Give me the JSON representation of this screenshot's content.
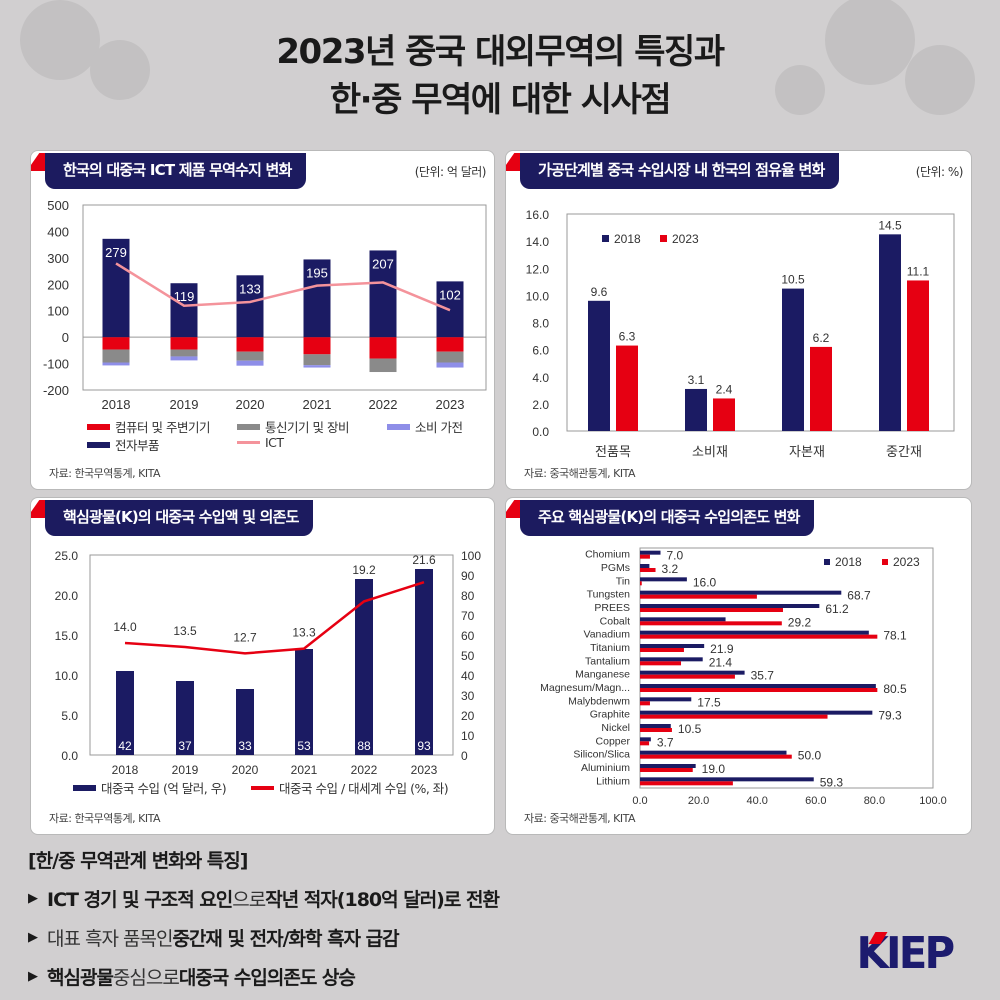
{
  "title": {
    "line1": "2023년 중국 대외무역의 특징과",
    "line2": "한·중 무역에 대한 시사점"
  },
  "colors": {
    "navy": "#1b1b63",
    "red": "#e60012",
    "gray": "#8a8a8a",
    "lavender": "#8e8ee8",
    "pink": "#f4939b"
  },
  "panels": [
    {
      "header": "한국의 대중국 ICT 제품 무역수지 변화",
      "unit": "(단위: 억 달러)",
      "source": "자료: 한국무역통계, KITA"
    },
    {
      "header": "가공단계별 중국 수입시장 내 한국의 점유율 변화",
      "unit": "(단위: %)",
      "source": "자료: 중국해관통계, KITA"
    },
    {
      "header": "핵심광물(K)의 대중국 수입액 및 의존도",
      "source": "자료: 한국무역통계, KITA"
    },
    {
      "header": "주요 핵심광물(K)의 대중국 수입의존도 변화",
      "source": "자료: 중국해관통계, KITA"
    }
  ],
  "chart_data": [
    {
      "type": "bar",
      "stacked": true,
      "title": "한국의 대중국 ICT 제품 무역수지 변화",
      "categories": [
        "2018",
        "2019",
        "2020",
        "2021",
        "2022",
        "2023"
      ],
      "ylim": [
        -200,
        500
      ],
      "yticks": [
        "500",
        "400",
        "300",
        "200",
        "100",
        "0",
        "-100",
        "-200"
      ],
      "series": [
        {
          "name": "컴퓨터 및 주변기기",
          "color": "#e60012",
          "values": [
            -47,
            -47,
            -55,
            -65,
            -81,
            -55
          ]
        },
        {
          "name": "통신기기 및 장비",
          "color": "#8a8a8a",
          "values": [
            -49,
            -26,
            -34,
            -41,
            -51,
            -41
          ]
        },
        {
          "name": "소비 가전",
          "color": "#8e8ee8",
          "values": [
            -11,
            -15,
            -19,
            -9,
            0,
            -19
          ]
        },
        {
          "name": "전자부품",
          "color": "#1b1b63",
          "values": [
            372,
            204,
            234,
            294,
            328,
            211
          ]
        },
        {
          "name": "ICT",
          "type": "line",
          "color": "#f4939b",
          "values": [
            279,
            119,
            133,
            195,
            207,
            102
          ]
        }
      ],
      "data_labels": [
        "279",
        "119",
        "133",
        "195",
        "207",
        "102"
      ]
    },
    {
      "type": "bar",
      "title": "가공단계별 중국 수입시장 내 한국의 점유율 변화",
      "categories": [
        "전품목",
        "소비재",
        "자본재",
        "중간재"
      ],
      "ylim": [
        0,
        16
      ],
      "yticks": [
        "16.0",
        "14.0",
        "12.0",
        "10.0",
        "8.0",
        "6.0",
        "4.0",
        "2.0",
        "0.0"
      ],
      "legend_position": "top-left",
      "series": [
        {
          "name": "2018",
          "color": "#1b1b63",
          "values": [
            9.6,
            3.1,
            10.5,
            14.5
          ],
          "labels": [
            "9.6",
            "3.1",
            "10.5",
            "14.5"
          ]
        },
        {
          "name": "2023",
          "color": "#e60012",
          "values": [
            6.3,
            2.4,
            6.2,
            11.1
          ],
          "labels": [
            "6.3",
            "2.4",
            "6.2",
            "11.1"
          ]
        }
      ]
    },
    {
      "type": "bar",
      "title": "핵심광물(K)의 대중국 수입액 및 의존도",
      "categories": [
        "2018",
        "2019",
        "2020",
        "2021",
        "2022",
        "2023"
      ],
      "ylim_left": [
        0,
        25
      ],
      "ylim_right": [
        0,
        100
      ],
      "yticks_left": [
        "25.0",
        "20.0",
        "15.0",
        "10.0",
        "5.0",
        "0.0"
      ],
      "yticks_right": [
        "100",
        "90",
        "80",
        "70",
        "60",
        "50",
        "40",
        "30",
        "20",
        "10",
        "0"
      ],
      "series": [
        {
          "name": "대중국 수입 (억 달러, 우)",
          "type": "bar",
          "axis": "right",
          "color": "#1b1b63",
          "values": [
            42,
            37,
            33,
            53,
            88,
            93
          ],
          "labels": [
            "42",
            "37",
            "33",
            "53",
            "88",
            "93"
          ]
        },
        {
          "name": "대중국 수입 / 대세계 수입 (%, 좌)",
          "type": "line",
          "axis": "left",
          "color": "#e60012",
          "values": [
            14.0,
            13.5,
            12.7,
            13.3,
            19.2,
            21.6
          ],
          "labels": [
            "14.0",
            "13.5",
            "12.7",
            "13.3",
            "19.2",
            "21.6"
          ]
        }
      ]
    },
    {
      "type": "bar",
      "orientation": "horizontal",
      "title": "주요 핵심광물(K)의 대중국 수입의존도 변화",
      "categories": [
        "Chomium",
        "PGMs",
        "Tin",
        "Tungsten",
        "PREES",
        "Cobalt",
        "Vanadium",
        "Titanium",
        "Tantalium",
        "Manganese",
        "Magnesum/Magn...",
        "Malybdenwm",
        "Graphite",
        "Nickel",
        "Copper",
        "Silicon/Slica",
        "Aluminium",
        "Lithium"
      ],
      "xlim": [
        0,
        100
      ],
      "xticks": [
        "0.0",
        "20.0",
        "40.0",
        "60.0",
        "80.0",
        "100.0"
      ],
      "legend_position": "top-right",
      "series": [
        {
          "name": "2018",
          "color": "#1b1b63",
          "values": [
            7.0,
            3.2,
            16.0,
            68.7,
            61.2,
            29.2,
            78.1,
            21.9,
            21.4,
            35.7,
            80.5,
            17.5,
            79.3,
            10.5,
            3.7,
            50.0,
            19.0,
            59.3
          ]
        },
        {
          "name": "2023",
          "color": "#e60012",
          "values": [
            3.4,
            5.3,
            0.6,
            39.9,
            48.8,
            48.4,
            81.0,
            15.0,
            14.0,
            32.4,
            81.0,
            3.4,
            64.0,
            10.9,
            3.1,
            51.8,
            18.0,
            31.7
          ]
        }
      ],
      "data_labels": [
        "7.0",
        "3.2",
        "16.0",
        "68.7",
        "61.2",
        "29.2",
        "78.1",
        "21.9",
        "21.4",
        "35.7",
        "80.5",
        "17.5",
        "79.3",
        "10.5",
        "3.7",
        "50.0",
        "19.0",
        "59.3"
      ]
    }
  ],
  "summary": {
    "heading": "[한/중 무역관계 변화와 특징]",
    "bullets": [
      [
        {
          "t": "ICT 경기 및 구조적 요인",
          "b": true
        },
        {
          "t": "으로 ",
          "b": false
        },
        {
          "t": "작년 적자(180억 달러)로 전환",
          "b": true
        }
      ],
      [
        {
          "t": "대표 흑자 품목인 ",
          "b": false
        },
        {
          "t": "중간재 및 전자/화학 흑자 급감",
          "b": true
        }
      ],
      [
        {
          "t": "핵심광물",
          "b": true
        },
        {
          "t": " 중심으로 ",
          "b": false
        },
        {
          "t": "대중국 수입의존도 상승",
          "b": true
        }
      ]
    ]
  },
  "logo": "KIEP"
}
